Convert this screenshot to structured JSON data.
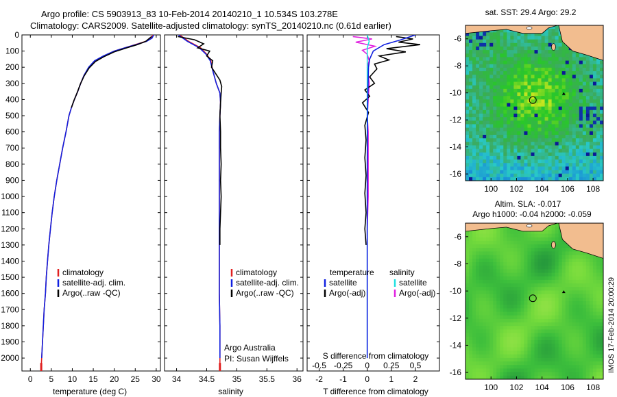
{
  "header": {
    "line1": "Argo profile: CS 5903913_83 10-Feb-2014 20140210_1 10.534S 103.278E",
    "line2": "Climatology: CARS2009. Satellite-adjusted climatology: synTS_20140210.nc (0.61d earlier)"
  },
  "stamp": "IMOS 17-Feb-2014 20:00:29",
  "colors": {
    "climatology": "#e02020",
    "satellite": "#1020e0",
    "argo": "#000000",
    "sat_diff_s": "#20e0e0",
    "argo_diff_s": "#e020e0"
  },
  "chart_data": [
    {
      "type": "line",
      "panel": "temperature",
      "xlabel": "temperature (deg C)",
      "ylabel": "",
      "xlim": [
        -2,
        31
      ],
      "ylim": [
        0,
        2080
      ],
      "y_inverted": true,
      "xticks": [
        0,
        5,
        10,
        15,
        20,
        25,
        30
      ],
      "yticks": [
        0,
        100,
        200,
        300,
        400,
        500,
        600,
        700,
        800,
        900,
        1000,
        1100,
        1200,
        1300,
        1400,
        1500,
        1600,
        1700,
        1800,
        1900,
        2000
      ],
      "legend": [
        "climatology",
        "satellite-adj. clim.",
        "Argo(..raw -QC)"
      ],
      "legend_position": "lower-center",
      "series": [
        {
          "name": "climatology",
          "color": "#e02020",
          "points": [
            [
              29.2,
              0
            ],
            [
              28.8,
              20
            ],
            [
              27.5,
              40
            ],
            [
              25,
              60
            ],
            [
              22.5,
              80
            ],
            [
              20,
              100
            ],
            [
              17.5,
              130
            ],
            [
              15.5,
              160
            ],
            [
              14,
              200
            ],
            [
              12.8,
              250
            ],
            [
              12,
              300
            ],
            [
              11.3,
              350
            ],
            [
              10.5,
              400
            ],
            [
              9.8,
              450
            ],
            [
              9.2,
              500
            ],
            [
              8.5,
              600
            ],
            [
              7.7,
              700
            ],
            [
              7,
              800
            ],
            [
              6.3,
              900
            ],
            [
              5.7,
              1000
            ],
            [
              5.2,
              1100
            ],
            [
              4.8,
              1200
            ],
            [
              4.4,
              1300
            ],
            [
              4.1,
              1400
            ],
            [
              3.8,
              1500
            ],
            [
              3.6,
              1600
            ],
            [
              3.3,
              1700
            ],
            [
              3.1,
              1800
            ],
            [
              2.9,
              1900
            ],
            [
              2.7,
              2000
            ],
            [
              2.6,
              2050
            ]
          ]
        },
        {
          "name": "satellite-adj. clim.",
          "color": "#1020e0",
          "points": [
            [
              29.4,
              0
            ],
            [
              29,
              20
            ],
            [
              27.7,
              40
            ],
            [
              25.2,
              60
            ],
            [
              22.5,
              80
            ],
            [
              20,
              100
            ],
            [
              17.4,
              130
            ],
            [
              15.3,
              160
            ],
            [
              13.9,
              200
            ],
            [
              12.8,
              250
            ],
            [
              12,
              300
            ],
            [
              11.3,
              350
            ],
            [
              10.5,
              400
            ],
            [
              9.8,
              450
            ],
            [
              9.2,
              500
            ],
            [
              8.5,
              600
            ],
            [
              7.7,
              700
            ],
            [
              7,
              800
            ],
            [
              6.3,
              900
            ],
            [
              5.7,
              1000
            ],
            [
              5.2,
              1100
            ],
            [
              4.8,
              1200
            ],
            [
              4.4,
              1300
            ],
            [
              4.1,
              1400
            ],
            [
              3.8,
              1500
            ],
            [
              3.6,
              1600
            ],
            [
              3.3,
              1700
            ],
            [
              3.1,
              1800
            ],
            [
              2.9,
              1900
            ],
            [
              2.7,
              2000
            ]
          ]
        },
        {
          "name": "Argo(..raw -QC)",
          "color": "#000000",
          "points": [
            [
              28.9,
              10
            ],
            [
              27.5,
              40
            ],
            [
              25.5,
              60
            ],
            [
              23,
              80
            ],
            [
              20,
              105
            ],
            [
              17.5,
              135
            ],
            [
              15.5,
              165
            ],
            [
              14,
              205
            ],
            [
              12.8,
              255
            ],
            [
              11.9,
              305
            ],
            [
              11.2,
              355
            ],
            [
              10.4,
              405
            ],
            [
              9.8,
              450
            ]
          ]
        }
      ]
    },
    {
      "type": "line",
      "panel": "salinity",
      "xlabel": "salinity",
      "ylabel": "",
      "xlim": [
        33.8,
        36.1
      ],
      "ylim": [
        0,
        2080
      ],
      "y_inverted": true,
      "xticks": [
        34,
        34.5,
        35,
        35.5,
        36
      ],
      "legend": [
        "climatology",
        "satellite-adj. clim.",
        "Argo(..raw -QC)"
      ],
      "legend_position": "lower-center",
      "annotations": [
        "Argo Australia",
        "PI: Susan Wijffels"
      ],
      "series": [
        {
          "name": "climatology",
          "color": "#e02020",
          "points": [
            [
              34.05,
              0
            ],
            [
              34.2,
              40
            ],
            [
              34.4,
              80
            ],
            [
              34.5,
              120
            ],
            [
              34.57,
              160
            ],
            [
              34.6,
              220
            ],
            [
              34.66,
              300
            ],
            [
              34.72,
              360
            ],
            [
              34.73,
              420
            ],
            [
              34.72,
              500
            ],
            [
              34.71,
              600
            ],
            [
              34.71,
              800
            ],
            [
              34.71,
              1000
            ],
            [
              34.71,
              1200
            ],
            [
              34.71,
              1400
            ],
            [
              34.71,
              1600
            ],
            [
              34.72,
              1800
            ],
            [
              34.72,
              2000
            ],
            [
              34.72,
              2050
            ]
          ]
        },
        {
          "name": "satellite-adj. clim.",
          "color": "#1020e0",
          "points": [
            [
              34.03,
              0
            ],
            [
              34.18,
              40
            ],
            [
              34.38,
              80
            ],
            [
              34.49,
              120
            ],
            [
              34.56,
              160
            ],
            [
              34.6,
              220
            ],
            [
              34.66,
              300
            ],
            [
              34.72,
              360
            ],
            [
              34.73,
              420
            ],
            [
              34.72,
              500
            ],
            [
              34.71,
              600
            ],
            [
              34.71,
              800
            ],
            [
              34.71,
              1000
            ],
            [
              34.71,
              1200
            ],
            [
              34.71,
              1400
            ],
            [
              34.71,
              1600
            ],
            [
              34.72,
              1800
            ],
            [
              34.72,
              2000
            ]
          ]
        },
        {
          "name": "Argo(..raw -QC)",
          "color": "#000000",
          "points": [
            [
              34.02,
              10
            ],
            [
              34.3,
              30
            ],
            [
              34.45,
              55
            ],
            [
              34.35,
              80
            ],
            [
              34.55,
              100
            ],
            [
              34.5,
              130
            ],
            [
              34.6,
              160
            ],
            [
              34.58,
              200
            ],
            [
              34.65,
              240
            ],
            [
              34.72,
              280
            ],
            [
              34.75,
              320
            ],
            [
              34.74,
              360
            ],
            [
              34.73,
              420
            ],
            [
              34.72,
              500
            ],
            [
              34.73,
              600
            ],
            [
              34.73,
              700
            ],
            [
              34.74,
              800
            ],
            [
              34.73,
              900
            ],
            [
              34.74,
              1000
            ],
            [
              34.73,
              1100
            ],
            [
              34.72,
              1200
            ],
            [
              34.72,
              1300
            ]
          ]
        }
      ]
    },
    {
      "type": "line",
      "panel": "difference",
      "xlabel": "T difference from climatology",
      "xlabel_top": "S difference from climatology",
      "ylabel": "",
      "xlim": [
        -2.5,
        3
      ],
      "x2lim": [
        -0.625,
        0.75
      ],
      "ylim": [
        0,
        2080
      ],
      "y_inverted": true,
      "xticks": [
        -2,
        -1,
        0,
        1,
        2
      ],
      "x2ticks": [
        -0.5,
        -0.25,
        0,
        0.25,
        0.5
      ],
      "legend_titles": [
        "temperature",
        "salinity"
      ],
      "legend_temperature": [
        "satellite",
        "Argo(-adj)"
      ],
      "legend_salinity": [
        "satellite",
        "Argo(-adj)"
      ],
      "legend_position": "lower-center",
      "series": [
        {
          "name": "T satellite",
          "color": "#1020e0",
          "axis": "T",
          "points": [
            [
              2.0,
              0
            ],
            [
              1.4,
              30
            ],
            [
              0.7,
              60
            ],
            [
              0.25,
              100
            ],
            [
              0.1,
              150
            ],
            [
              0.05,
              200
            ],
            [
              0.02,
              400
            ],
            [
              0,
              800
            ],
            [
              0,
              2000
            ]
          ]
        },
        {
          "name": "T Argo(-adj)",
          "color": "#000000",
          "axis": "T",
          "points": [
            [
              1.2,
              10
            ],
            [
              1.9,
              25
            ],
            [
              1.3,
              45
            ],
            [
              2.2,
              60
            ],
            [
              0.8,
              85
            ],
            [
              1.6,
              105
            ],
            [
              0.5,
              130
            ],
            [
              0.9,
              155
            ],
            [
              0.3,
              180
            ],
            [
              0.4,
              210
            ],
            [
              0.1,
              260
            ],
            [
              0.3,
              300
            ],
            [
              -0.1,
              340
            ],
            [
              0.1,
              380
            ],
            [
              -0.2,
              420
            ],
            [
              0.05,
              480
            ],
            [
              -0.1,
              560
            ],
            [
              -0.05,
              650
            ],
            [
              -0.1,
              760
            ],
            [
              -0.05,
              870
            ],
            [
              -0.1,
              980
            ],
            [
              -0.05,
              1100
            ],
            [
              -0.1,
              1200
            ],
            [
              -0.05,
              1300
            ]
          ]
        },
        {
          "name": "S satellite",
          "color": "#20e0e0",
          "axis": "S",
          "points": [
            [
              0.0,
              0
            ],
            [
              0.02,
              40
            ],
            [
              0.0,
              80
            ],
            [
              0.0,
              200
            ],
            [
              0.0,
              600
            ],
            [
              0.0,
              1200
            ],
            [
              0.0,
              2000
            ]
          ]
        },
        {
          "name": "S Argo(-adj)",
          "color": "#e020e0",
          "axis": "S",
          "points": [
            [
              -0.15,
              10
            ],
            [
              0.05,
              25
            ],
            [
              -0.12,
              45
            ],
            [
              0.08,
              70
            ],
            [
              -0.05,
              95
            ],
            [
              0.0,
              120
            ],
            [
              0.02,
              160
            ],
            [
              0.0,
              200
            ],
            [
              0.01,
              240
            ],
            [
              0.02,
              300
            ],
            [
              0.01,
              400
            ],
            [
              0.0,
              500
            ],
            [
              0.01,
              600
            ],
            [
              0.01,
              800
            ],
            [
              0.01,
              1000
            ],
            [
              0.0,
              1200
            ],
            [
              0.0,
              1300
            ]
          ]
        }
      ]
    },
    {
      "type": "heatmap",
      "panel": "sst-map",
      "title": "sat. SST: 29.4 Argo: 29.2",
      "xlim": [
        98,
        108.8
      ],
      "ylim": [
        -16.5,
        -5
      ],
      "xticks": [
        100,
        102,
        104,
        106,
        108
      ],
      "yticks": [
        -6,
        -8,
        -10,
        -12,
        -14,
        -16
      ],
      "argo_position": [
        103.278,
        -10.534
      ]
    },
    {
      "type": "heatmap",
      "panel": "sla-map",
      "title": "Altim. SLA: -0.017",
      "subtitle": "Argo h1000: -0.04 h2000: -0.059",
      "xlim": [
        98,
        108.8
      ],
      "ylim": [
        -16.5,
        -5
      ],
      "xticks": [
        100,
        102,
        104,
        106,
        108
      ],
      "yticks": [
        -6,
        -8,
        -10,
        -12,
        -14,
        -16
      ],
      "argo_position": [
        103.278,
        -10.534
      ]
    }
  ]
}
